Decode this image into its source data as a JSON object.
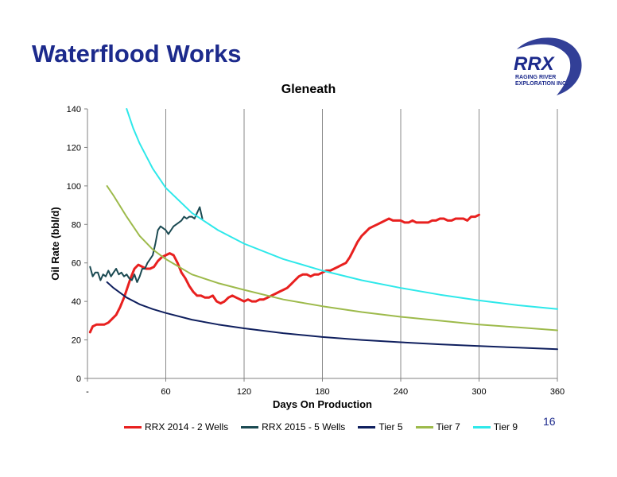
{
  "slide": {
    "title": "Waterflood Works",
    "page_number": "16"
  },
  "logo": {
    "wordmark": "RRX",
    "line1": "RAGING RIVER",
    "line2": "EXPLORATION INC.",
    "color": "#1c2a8c"
  },
  "chart_data": {
    "type": "line",
    "title": "Gleneath",
    "xlabel": "Days On Production",
    "ylabel": "Oil Rate (bbl/d)",
    "xlim": [
      0,
      360
    ],
    "ylim": [
      0,
      140
    ],
    "x_ticks": [
      0,
      60,
      120,
      180,
      240,
      300,
      360
    ],
    "x_tick_labels": [
      "-",
      "60",
      "120",
      "180",
      "240",
      "300",
      "360"
    ],
    "y_ticks": [
      0,
      20,
      40,
      60,
      80,
      100,
      120,
      140
    ],
    "grid": "vertical",
    "legend": "bottom",
    "series": [
      {
        "name": "RRX 2014 - 2 Wells",
        "color": "#e8201f",
        "width": 3,
        "x": [
          2,
          4,
          7,
          10,
          13,
          16,
          19,
          22,
          25,
          28,
          30,
          33,
          36,
          39,
          42,
          45,
          48,
          51,
          54,
          57,
          60,
          63,
          66,
          69,
          72,
          75,
          78,
          81,
          84,
          87,
          90,
          93,
          96,
          99,
          102,
          105,
          108,
          111,
          114,
          117,
          120,
          123,
          126,
          129,
          132,
          135,
          138,
          141,
          144,
          147,
          150,
          153,
          156,
          159,
          162,
          165,
          168,
          171,
          174,
          177,
          180,
          183,
          186,
          189,
          192,
          195,
          198,
          201,
          204,
          207,
          210,
          213,
          216,
          219,
          222,
          225,
          228,
          231,
          234,
          237,
          240,
          243,
          246,
          249,
          252,
          255,
          258,
          261,
          264,
          267,
          270,
          273,
          276,
          279,
          282,
          285,
          288,
          291,
          294,
          297,
          300
        ],
        "y": [
          24,
          27,
          28,
          28,
          28,
          29,
          31,
          33,
          37,
          42,
          46,
          52,
          57,
          59,
          58,
          57,
          57,
          58,
          61,
          63,
          64,
          65,
          64,
          60,
          55,
          52,
          48,
          45,
          43,
          43,
          42,
          42,
          43,
          40,
          39,
          40,
          42,
          43,
          42,
          41,
          40,
          41,
          40,
          40,
          41,
          41,
          42,
          43,
          44,
          45,
          46,
          47,
          49,
          51,
          53,
          54,
          54,
          53,
          54,
          54,
          55,
          56,
          56,
          57,
          58,
          59,
          60,
          63,
          67,
          71,
          74,
          76,
          78,
          79,
          80,
          81,
          82,
          83,
          82,
          82,
          82,
          81,
          81,
          82,
          81,
          81,
          81,
          81,
          82,
          82,
          83,
          83,
          82,
          82,
          83,
          83,
          83,
          82,
          84,
          84,
          85
        ]
      },
      {
        "name": "RRX 2015 - 5 Wells",
        "color": "#1b4a52",
        "width": 2,
        "x": [
          2,
          4,
          6,
          8,
          10,
          12,
          14,
          16,
          18,
          20,
          22,
          24,
          26,
          28,
          30,
          32,
          34,
          36,
          38,
          40,
          42,
          44,
          46,
          48,
          50,
          52,
          54,
          56,
          58,
          60,
          62,
          64,
          66,
          68,
          70,
          72,
          74,
          76,
          78,
          80,
          82,
          84,
          86,
          88
        ],
        "y": [
          58,
          53,
          55,
          55,
          51,
          54,
          53,
          56,
          53,
          55,
          57,
          54,
          55,
          53,
          54,
          52,
          51,
          54,
          50,
          53,
          57,
          57,
          60,
          62,
          64,
          70,
          77,
          79,
          78,
          77,
          75,
          77,
          79,
          80,
          81,
          82,
          84,
          83,
          84,
          84,
          83,
          86,
          89,
          83
        ]
      },
      {
        "name": "Tier 5",
        "color": "#0f1f5e",
        "width": 2,
        "x": [
          15,
          20,
          30,
          40,
          50,
          60,
          80,
          100,
          120,
          150,
          180,
          210,
          240,
          270,
          300,
          330,
          360
        ],
        "y": [
          50,
          47,
          42,
          38.5,
          36,
          34,
          30.5,
          28,
          26,
          23.5,
          21.5,
          20,
          18.8,
          17.7,
          16.8,
          16,
          15.2
        ]
      },
      {
        "name": "Tier 7",
        "color": "#9dba4b",
        "width": 2,
        "x": [
          15,
          20,
          30,
          40,
          50,
          60,
          80,
          100,
          120,
          150,
          180,
          210,
          240,
          270,
          300,
          330,
          360
        ],
        "y": [
          100,
          95,
          84,
          74,
          67,
          62,
          54,
          49.5,
          46,
          41,
          37.5,
          34.5,
          32,
          30,
          28,
          26.5,
          25
        ]
      },
      {
        "name": "Tier 9",
        "color": "#2ee8ea",
        "width": 2,
        "x": [
          30,
          35,
          40,
          50,
          60,
          80,
          100,
          120,
          150,
          180,
          210,
          240,
          270,
          300,
          330,
          360
        ],
        "y": [
          140,
          130,
          122,
          109,
          99,
          86,
          77,
          70,
          62,
          56,
          51,
          47,
          43.5,
          40.5,
          38,
          36
        ]
      }
    ]
  }
}
